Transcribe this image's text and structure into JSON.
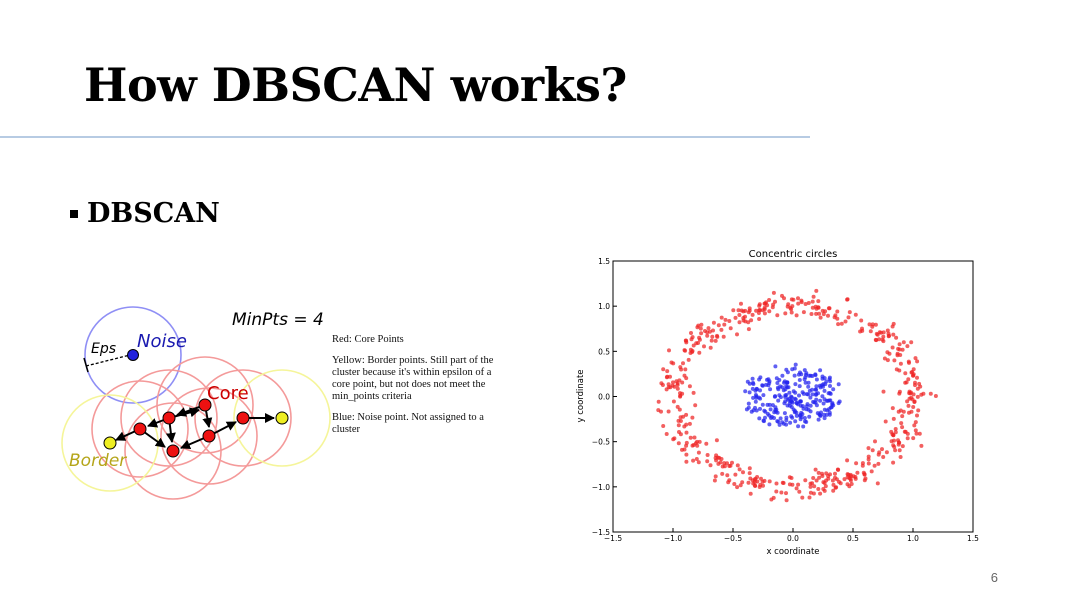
{
  "slide": {
    "title": "How DBSCAN works?",
    "bullet": "DBSCAN",
    "page_number": "6"
  },
  "diagram": {
    "minpts_label": "MinPts = 4",
    "eps_label": "Eps",
    "noise_label": "Noise",
    "core_label": "Core",
    "border_label": "Border"
  },
  "legend": {
    "red": "Red: Core Points",
    "yellow": "Yellow: Border points. Still part of the cluster because it's within epsilon of a core point, but not does not meet the min_points criteria",
    "blue": "Blue: Noise point. Not assigned to a cluster"
  },
  "colors": {
    "core": "#ee1111",
    "border": "#eeee22",
    "noise": "#2222dd",
    "outer_ring_points": "#ee2222",
    "inner_cluster_points": "#2222ee"
  },
  "chart_data": {
    "type": "scatter",
    "title": "Concentric circles",
    "xlabel": "x coordinate",
    "ylabel": "y coordinate",
    "xlim": [
      -1.5,
      1.5
    ],
    "ylim": [
      -1.5,
      1.5
    ],
    "xticks": [
      "−1.5",
      "−1.0",
      "−0.5",
      "0.0",
      "0.5",
      "1.0",
      "1.5"
    ],
    "yticks": [
      "−1.5",
      "−1.0",
      "−0.5",
      "0.0",
      "0.5",
      "1.0",
      "1.5"
    ],
    "grid": false,
    "series": [
      {
        "color": "#ee2222",
        "shape": "ring",
        "center": [
          0,
          0
        ],
        "radius": 1.0,
        "approx_count": 500
      },
      {
        "color": "#2222ee",
        "shape": "disk",
        "center": [
          0,
          0
        ],
        "radius": 0.3,
        "approx_count": 250
      }
    ]
  }
}
